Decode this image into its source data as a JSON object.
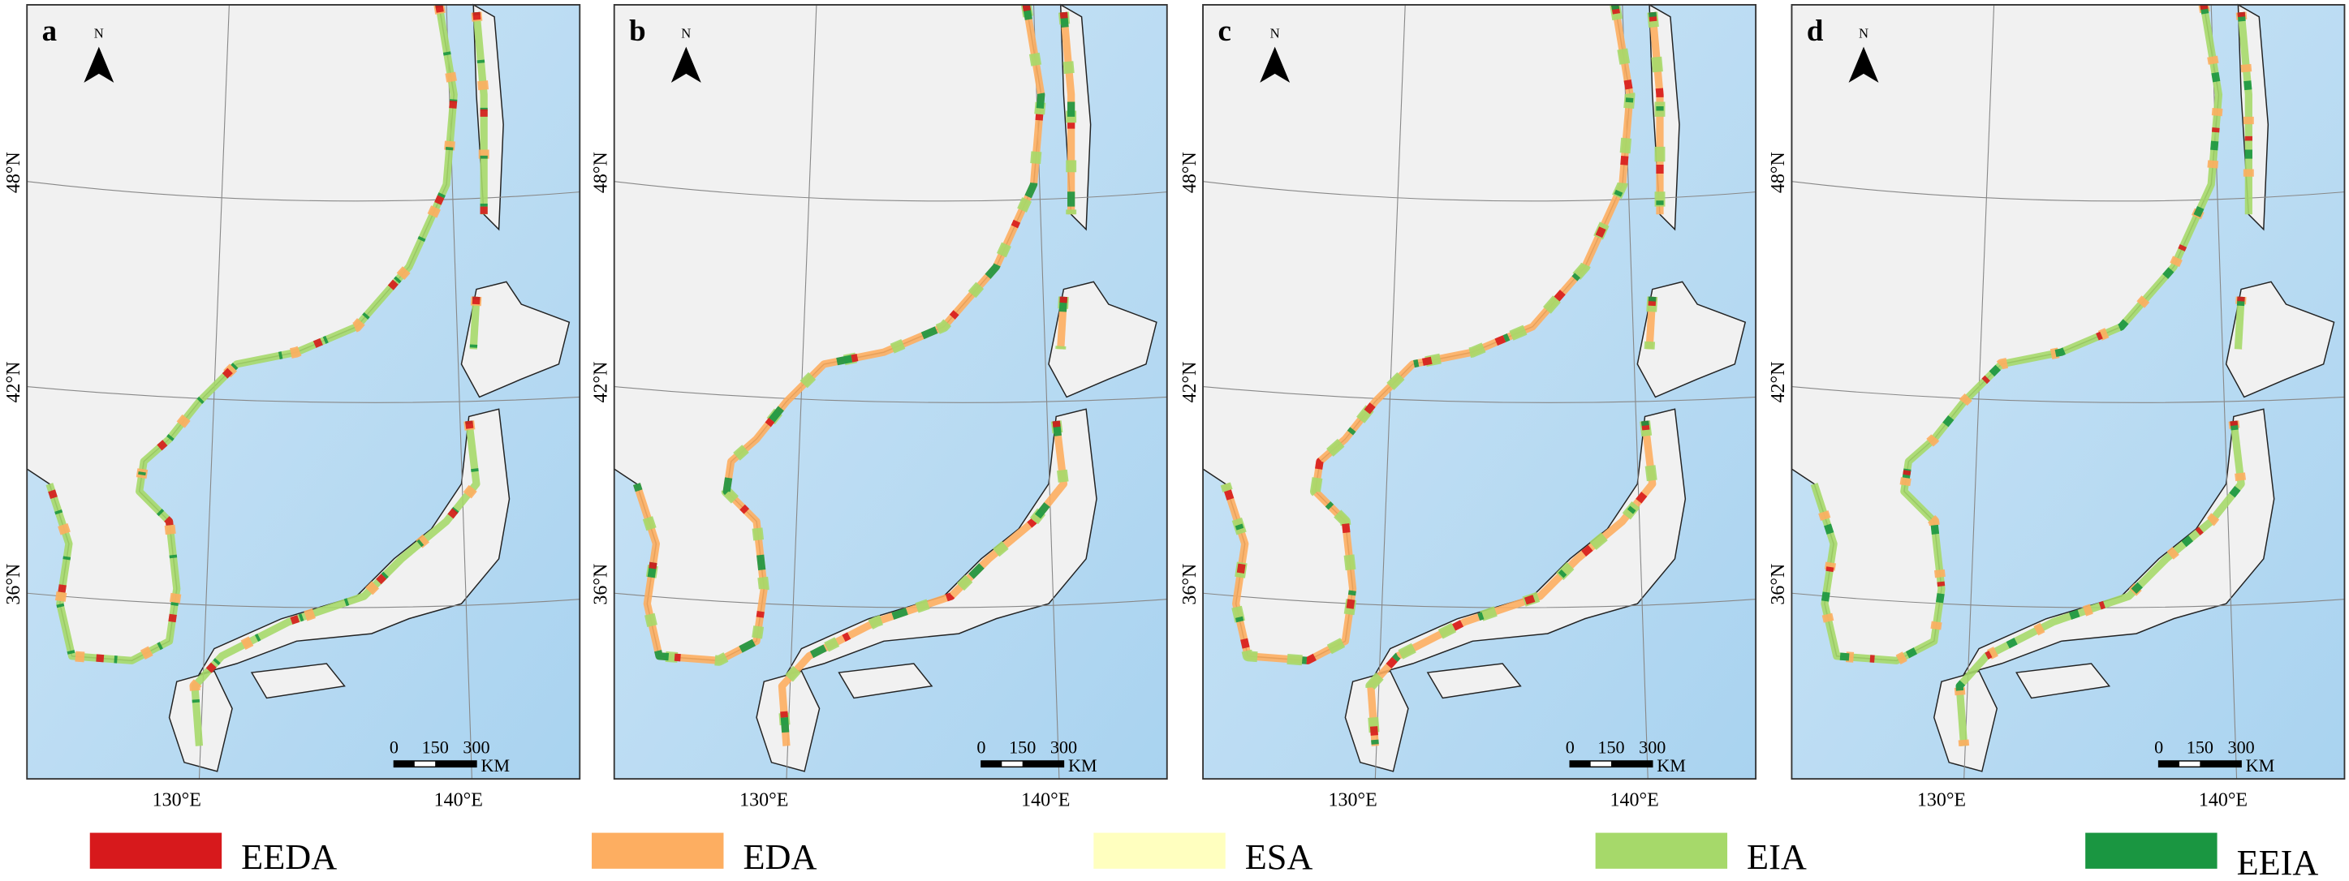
{
  "panels": [
    {
      "label": "a"
    },
    {
      "label": "b"
    },
    {
      "label": "c"
    },
    {
      "label": "d"
    }
  ],
  "north_arrow": "N",
  "lat_labels": [
    "48°N",
    "42°N",
    "36°N"
  ],
  "lon_labels": [
    "130°E",
    "140°E"
  ],
  "scale_bar": {
    "ticks": [
      0,
      150,
      300
    ],
    "unit": "KM"
  },
  "legend": [
    {
      "label": "EEDA",
      "color": "#d7191c"
    },
    {
      "label": "EDA",
      "color": "#fdae61"
    },
    {
      "label": "ESA",
      "color": "#ffffbf"
    },
    {
      "label": "EIA",
      "color": "#a6d96a"
    },
    {
      "label": "EEIA",
      "color": "#1a9641"
    }
  ]
}
